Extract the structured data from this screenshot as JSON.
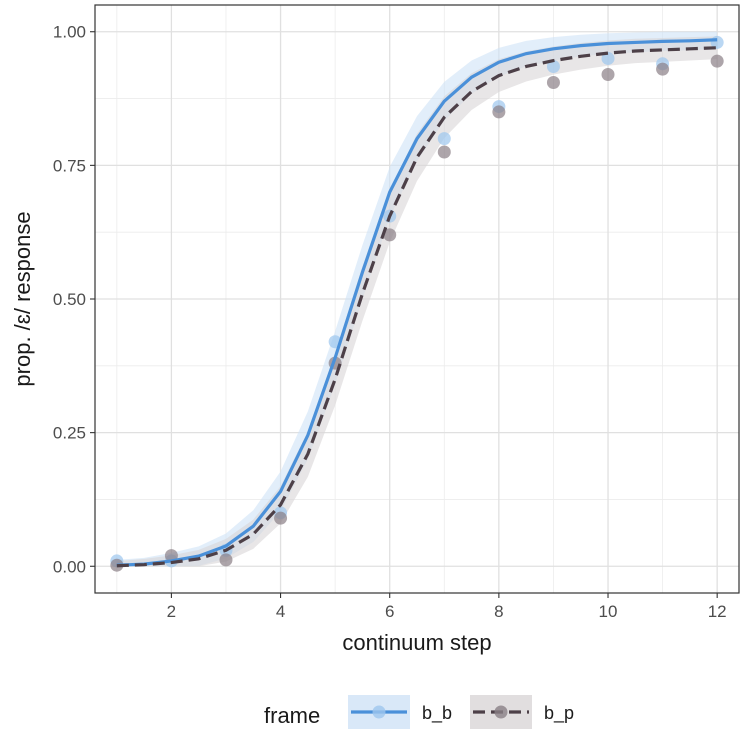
{
  "chart_data": {
    "type": "line",
    "xlabel": "continuum step",
    "ylabel": "prop. /ɛ/ response",
    "xlim": [
      0.6,
      12.4
    ],
    "ylim": [
      -0.05,
      1.05
    ],
    "x_ticks": [
      2,
      4,
      6,
      8,
      10,
      12
    ],
    "y_ticks": [
      0.0,
      0.25,
      0.5,
      0.75,
      1.0
    ],
    "x_tick_labels": [
      "2",
      "4",
      "6",
      "8",
      "10",
      "12"
    ],
    "y_tick_labels": [
      "0.00",
      "0.25",
      "0.50",
      "0.75",
      "1.00"
    ],
    "grid": true,
    "legend": {
      "title": "frame",
      "placement": "bottom"
    },
    "series": [
      {
        "name": "b_b",
        "color": "#4a90d9",
        "line_style": "solid",
        "points": {
          "x": [
            1,
            2,
            3,
            4,
            5,
            6,
            7,
            8,
            9,
            10,
            11,
            12
          ],
          "y": [
            0.01,
            0.01,
            0.03,
            0.1,
            0.42,
            0.655,
            0.8,
            0.86,
            0.935,
            0.95,
            0.94,
            0.98
          ]
        },
        "fit": {
          "x": [
            1,
            1.5,
            2,
            2.5,
            3,
            3.5,
            4,
            4.5,
            5,
            5.5,
            6,
            6.5,
            7,
            7.5,
            8,
            8.5,
            9,
            9.5,
            10,
            10.5,
            11,
            11.5,
            12
          ],
          "y": [
            0.002,
            0.004,
            0.01,
            0.019,
            0.038,
            0.075,
            0.14,
            0.245,
            0.39,
            0.55,
            0.7,
            0.8,
            0.87,
            0.915,
            0.943,
            0.959,
            0.968,
            0.974,
            0.978,
            0.98,
            0.982,
            0.983,
            0.985
          ]
        }
      },
      {
        "name": "b_p",
        "color": "#4d4048",
        "line_style": "dashed",
        "points": {
          "x": [
            1,
            2,
            3,
            4,
            5,
            6,
            7,
            8,
            9,
            10,
            11,
            12
          ],
          "y": [
            0.002,
            0.02,
            0.012,
            0.09,
            0.38,
            0.62,
            0.775,
            0.85,
            0.905,
            0.92,
            0.93,
            0.945
          ]
        },
        "fit": {
          "x": [
            1,
            1.5,
            2,
            2.5,
            3,
            3.5,
            4,
            4.5,
            5,
            5.5,
            6,
            6.5,
            7,
            7.5,
            8,
            8.5,
            9,
            9.5,
            10,
            10.5,
            11,
            11.5,
            12
          ],
          "y": [
            0.001,
            0.003,
            0.007,
            0.014,
            0.03,
            0.06,
            0.115,
            0.21,
            0.35,
            0.51,
            0.655,
            0.765,
            0.84,
            0.888,
            0.918,
            0.935,
            0.946,
            0.954,
            0.96,
            0.964,
            0.966,
            0.968,
            0.97
          ]
        }
      }
    ]
  }
}
